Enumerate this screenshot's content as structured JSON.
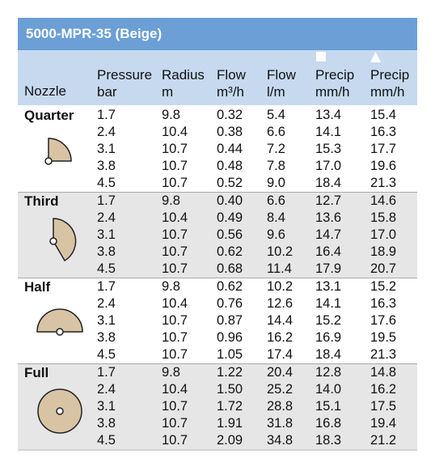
{
  "header": {
    "title": "5000-MPR-35 (Beige)"
  },
  "table": {
    "columns": [
      [
        "Nozzle"
      ],
      [
        "Pressure",
        "bar"
      ],
      [
        "Radius",
        "m"
      ],
      [
        "Flow",
        "m³/h"
      ],
      [
        "Flow",
        "l/m"
      ],
      [
        "Precip",
        "mm/h"
      ],
      [
        "Precip",
        "mm/h"
      ]
    ],
    "groups": [
      {
        "nozzle": "Quarter",
        "rows": [
          [
            "1.7",
            "9.8",
            "0.32",
            "5.4",
            "13.4",
            "15.4"
          ],
          [
            "2.4",
            "10.4",
            "0.38",
            "6.6",
            "14.1",
            "16.3"
          ],
          [
            "3.1",
            "10.7",
            "0.44",
            "7.2",
            "15.3",
            "17.7"
          ],
          [
            "3.8",
            "10.7",
            "0.48",
            "7.8",
            "17.0",
            "19.6"
          ],
          [
            "4.5",
            "10.7",
            "0.52",
            "9.0",
            "18.4",
            "21.3"
          ]
        ]
      },
      {
        "nozzle": "Third",
        "rows": [
          [
            "1.7",
            "9.8",
            "0.40",
            "6.6",
            "12.7",
            "14.6"
          ],
          [
            "2.4",
            "10.4",
            "0.49",
            "8.4",
            "13.6",
            "15.8"
          ],
          [
            "3.1",
            "10.7",
            "0.56",
            "9.6",
            "14.7",
            "17.0"
          ],
          [
            "3.8",
            "10.7",
            "0.62",
            "10.2",
            "16.4",
            "18.9"
          ],
          [
            "4.5",
            "10.7",
            "0.68",
            "11.4",
            "17.9",
            "20.7"
          ]
        ]
      },
      {
        "nozzle": "Half",
        "rows": [
          [
            "1.7",
            "9.8",
            "0.62",
            "10.2",
            "13.1",
            "15.2"
          ],
          [
            "2.4",
            "10.4",
            "0.76",
            "12.6",
            "14.1",
            "16.3"
          ],
          [
            "3.1",
            "10.7",
            "0.87",
            "14.4",
            "15.2",
            "17.6"
          ],
          [
            "3.8",
            "10.7",
            "0.96",
            "16.2",
            "16.9",
            "19.5"
          ],
          [
            "4.5",
            "10.7",
            "1.05",
            "17.4",
            "18.4",
            "21.3"
          ]
        ]
      },
      {
        "nozzle": "Full",
        "rows": [
          [
            "1.7",
            "9.8",
            "1.22",
            "20.4",
            "12.8",
            "14.8"
          ],
          [
            "2.4",
            "10.4",
            "1.50",
            "25.2",
            "14.0",
            "16.2"
          ],
          [
            "3.1",
            "10.7",
            "1.72",
            "28.8",
            "15.1",
            "17.5"
          ],
          [
            "3.8",
            "10.7",
            "1.91",
            "31.8",
            "16.8",
            "19.4"
          ],
          [
            "4.5",
            "10.7",
            "2.09",
            "34.8",
            "18.3",
            "21.2"
          ]
        ]
      }
    ]
  }
}
